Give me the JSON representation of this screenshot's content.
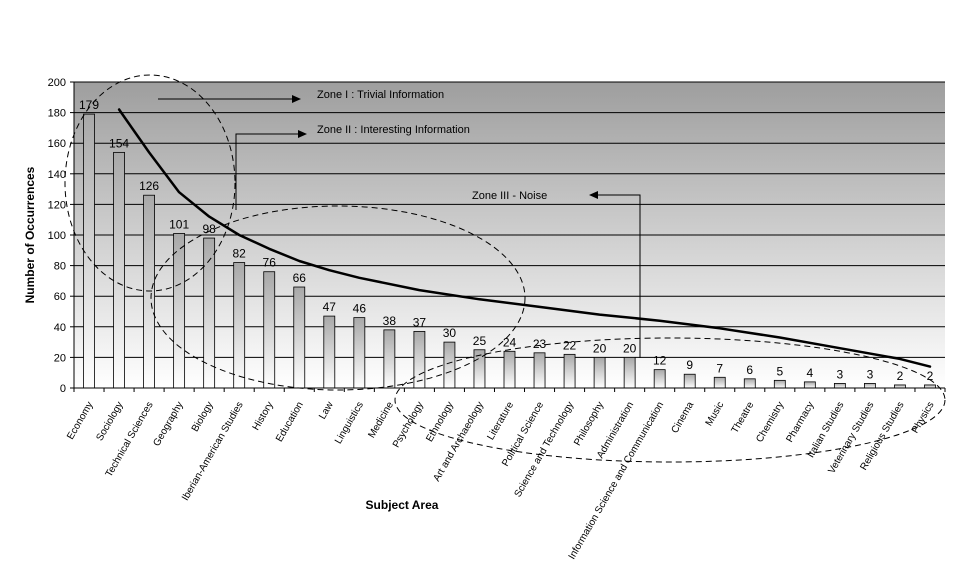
{
  "chart_data": {
    "type": "bar",
    "title": "",
    "xlabel": "Subject Area",
    "ylabel": "Number of Occurrences",
    "ylim": [
      0,
      200
    ],
    "yticks": [
      0,
      20,
      40,
      60,
      80,
      100,
      120,
      140,
      160,
      180,
      200
    ],
    "grid": true,
    "categories": [
      "Economy",
      "Sociology",
      "Technical Sciences",
      "Geography",
      "Biology",
      "Iberian-American Studies",
      "History",
      "Education",
      "Law",
      "Linguistics",
      "Medicine",
      "Psychology",
      "Ethnology",
      "Art and Archaeology",
      "Literature",
      "Political Science",
      "Science and Technology",
      "Philosophy",
      "Administration",
      "Information Science and Communication",
      "Cinema",
      "Music",
      "Theatre",
      "Chemistry",
      "Pharmacy",
      "Italian Studies",
      "Veterinary Studies",
      "Religious Studies",
      "Physics"
    ],
    "values": [
      179,
      154,
      126,
      101,
      98,
      82,
      76,
      66,
      47,
      46,
      38,
      37,
      30,
      25,
      24,
      23,
      22,
      20,
      20,
      12,
      9,
      7,
      6,
      5,
      4,
      3,
      3,
      2,
      2
    ],
    "trendline": {
      "type": "power",
      "x": [
        2,
        2.5,
        3,
        4,
        5,
        6,
        7,
        8,
        9,
        10,
        12,
        14,
        16,
        18,
        20,
        22,
        24,
        26,
        28,
        29
      ],
      "y": [
        182,
        168,
        154,
        128,
        112,
        100,
        91,
        83,
        77,
        72,
        64,
        58,
        53,
        48,
        44,
        39,
        33,
        26,
        19,
        14
      ]
    },
    "annotations": [
      {
        "text": "Zone I : Trivial Information",
        "name": "zone-1"
      },
      {
        "text": "Zone II : Interesting Information",
        "name": "zone-2"
      },
      {
        "text": "Zone III - Noise",
        "name": "zone-3"
      }
    ]
  }
}
